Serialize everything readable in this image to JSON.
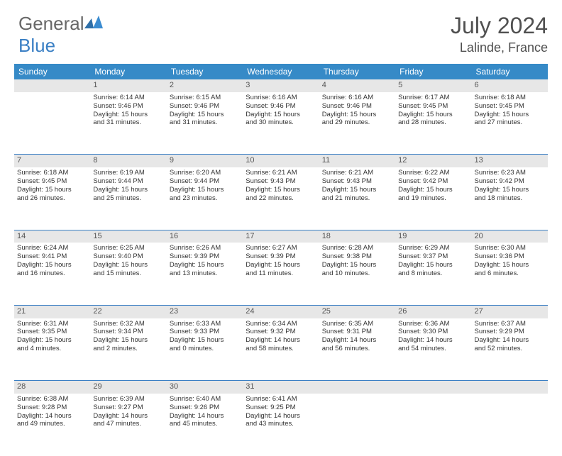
{
  "logo": {
    "text1": "General",
    "text2": "Blue"
  },
  "title": "July 2024",
  "location": "Lalinde, France",
  "colors": {
    "header_bg": "#368ac7",
    "daynum_bg": "#e7e7e7",
    "divider": "#3a7fc4",
    "text": "#505050"
  },
  "dayHeaders": [
    "Sunday",
    "Monday",
    "Tuesday",
    "Wednesday",
    "Thursday",
    "Friday",
    "Saturday"
  ],
  "weeks": [
    {
      "nums": [
        "",
        "1",
        "2",
        "3",
        "4",
        "5",
        "6"
      ],
      "cells": [
        [],
        [
          "Sunrise: 6:14 AM",
          "Sunset: 9:46 PM",
          "Daylight: 15 hours",
          "and 31 minutes."
        ],
        [
          "Sunrise: 6:15 AM",
          "Sunset: 9:46 PM",
          "Daylight: 15 hours",
          "and 31 minutes."
        ],
        [
          "Sunrise: 6:16 AM",
          "Sunset: 9:46 PM",
          "Daylight: 15 hours",
          "and 30 minutes."
        ],
        [
          "Sunrise: 6:16 AM",
          "Sunset: 9:46 PM",
          "Daylight: 15 hours",
          "and 29 minutes."
        ],
        [
          "Sunrise: 6:17 AM",
          "Sunset: 9:45 PM",
          "Daylight: 15 hours",
          "and 28 minutes."
        ],
        [
          "Sunrise: 6:18 AM",
          "Sunset: 9:45 PM",
          "Daylight: 15 hours",
          "and 27 minutes."
        ]
      ]
    },
    {
      "nums": [
        "7",
        "8",
        "9",
        "10",
        "11",
        "12",
        "13"
      ],
      "cells": [
        [
          "Sunrise: 6:18 AM",
          "Sunset: 9:45 PM",
          "Daylight: 15 hours",
          "and 26 minutes."
        ],
        [
          "Sunrise: 6:19 AM",
          "Sunset: 9:44 PM",
          "Daylight: 15 hours",
          "and 25 minutes."
        ],
        [
          "Sunrise: 6:20 AM",
          "Sunset: 9:44 PM",
          "Daylight: 15 hours",
          "and 23 minutes."
        ],
        [
          "Sunrise: 6:21 AM",
          "Sunset: 9:43 PM",
          "Daylight: 15 hours",
          "and 22 minutes."
        ],
        [
          "Sunrise: 6:21 AM",
          "Sunset: 9:43 PM",
          "Daylight: 15 hours",
          "and 21 minutes."
        ],
        [
          "Sunrise: 6:22 AM",
          "Sunset: 9:42 PM",
          "Daylight: 15 hours",
          "and 19 minutes."
        ],
        [
          "Sunrise: 6:23 AM",
          "Sunset: 9:42 PM",
          "Daylight: 15 hours",
          "and 18 minutes."
        ]
      ]
    },
    {
      "nums": [
        "14",
        "15",
        "16",
        "17",
        "18",
        "19",
        "20"
      ],
      "cells": [
        [
          "Sunrise: 6:24 AM",
          "Sunset: 9:41 PM",
          "Daylight: 15 hours",
          "and 16 minutes."
        ],
        [
          "Sunrise: 6:25 AM",
          "Sunset: 9:40 PM",
          "Daylight: 15 hours",
          "and 15 minutes."
        ],
        [
          "Sunrise: 6:26 AM",
          "Sunset: 9:39 PM",
          "Daylight: 15 hours",
          "and 13 minutes."
        ],
        [
          "Sunrise: 6:27 AM",
          "Sunset: 9:39 PM",
          "Daylight: 15 hours",
          "and 11 minutes."
        ],
        [
          "Sunrise: 6:28 AM",
          "Sunset: 9:38 PM",
          "Daylight: 15 hours",
          "and 10 minutes."
        ],
        [
          "Sunrise: 6:29 AM",
          "Sunset: 9:37 PM",
          "Daylight: 15 hours",
          "and 8 minutes."
        ],
        [
          "Sunrise: 6:30 AM",
          "Sunset: 9:36 PM",
          "Daylight: 15 hours",
          "and 6 minutes."
        ]
      ]
    },
    {
      "nums": [
        "21",
        "22",
        "23",
        "24",
        "25",
        "26",
        "27"
      ],
      "cells": [
        [
          "Sunrise: 6:31 AM",
          "Sunset: 9:35 PM",
          "Daylight: 15 hours",
          "and 4 minutes."
        ],
        [
          "Sunrise: 6:32 AM",
          "Sunset: 9:34 PM",
          "Daylight: 15 hours",
          "and 2 minutes."
        ],
        [
          "Sunrise: 6:33 AM",
          "Sunset: 9:33 PM",
          "Daylight: 15 hours",
          "and 0 minutes."
        ],
        [
          "Sunrise: 6:34 AM",
          "Sunset: 9:32 PM",
          "Daylight: 14 hours",
          "and 58 minutes."
        ],
        [
          "Sunrise: 6:35 AM",
          "Sunset: 9:31 PM",
          "Daylight: 14 hours",
          "and 56 minutes."
        ],
        [
          "Sunrise: 6:36 AM",
          "Sunset: 9:30 PM",
          "Daylight: 14 hours",
          "and 54 minutes."
        ],
        [
          "Sunrise: 6:37 AM",
          "Sunset: 9:29 PM",
          "Daylight: 14 hours",
          "and 52 minutes."
        ]
      ]
    },
    {
      "nums": [
        "28",
        "29",
        "30",
        "31",
        "",
        "",
        ""
      ],
      "cells": [
        [
          "Sunrise: 6:38 AM",
          "Sunset: 9:28 PM",
          "Daylight: 14 hours",
          "and 49 minutes."
        ],
        [
          "Sunrise: 6:39 AM",
          "Sunset: 9:27 PM",
          "Daylight: 14 hours",
          "and 47 minutes."
        ],
        [
          "Sunrise: 6:40 AM",
          "Sunset: 9:26 PM",
          "Daylight: 14 hours",
          "and 45 minutes."
        ],
        [
          "Sunrise: 6:41 AM",
          "Sunset: 9:25 PM",
          "Daylight: 14 hours",
          "and 43 minutes."
        ],
        [],
        [],
        []
      ]
    }
  ]
}
